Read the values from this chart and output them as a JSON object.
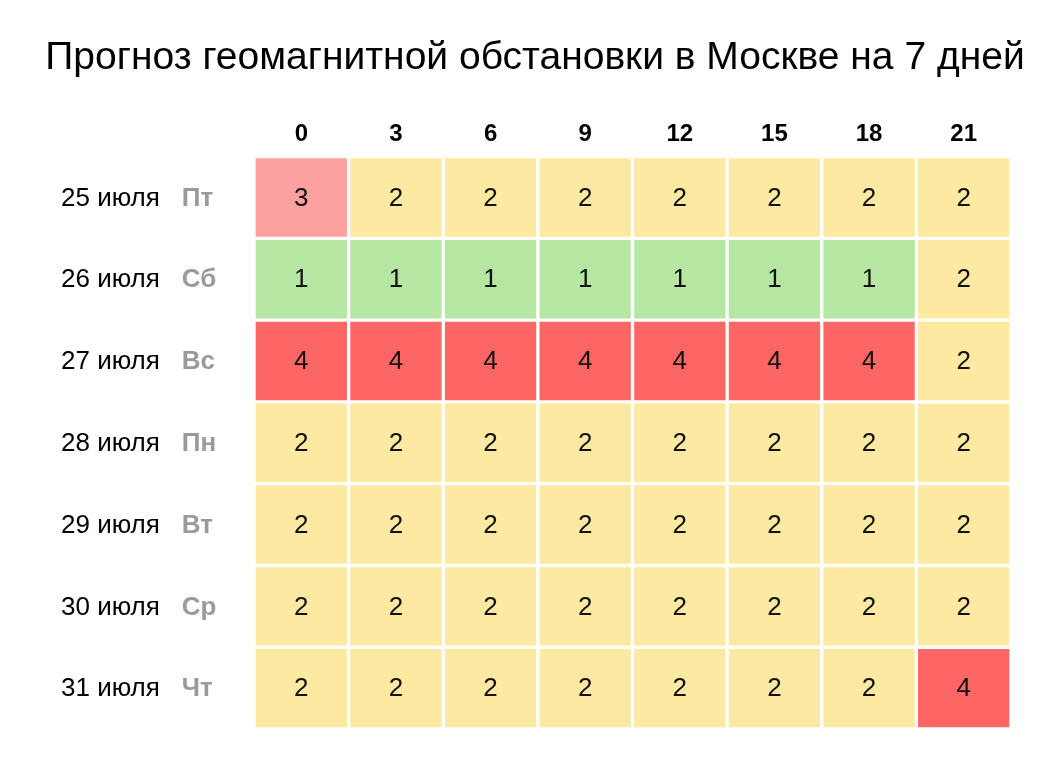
{
  "chart_data": {
    "type": "heatmap",
    "title": "Прогноз геомагнитной обстановки в Москве на 7 дней",
    "categories": [
      "0",
      "3",
      "6",
      "9",
      "12",
      "15",
      "18",
      "21"
    ],
    "y_categories": [
      "25 июля",
      "26 июля",
      "27 июля",
      "28 июля",
      "29 июля",
      "30 июля",
      "31 июля"
    ],
    "y2_categories": [
      "Пт",
      "Сб",
      "Вс",
      "Пн",
      "Вт",
      "Ср",
      "Чт"
    ],
    "cells": [
      [
        3,
        2,
        2,
        2,
        2,
        2,
        2,
        2
      ],
      [
        1,
        1,
        1,
        1,
        1,
        1,
        1,
        2
      ],
      [
        4,
        4,
        4,
        4,
        4,
        4,
        4,
        2
      ],
      [
        2,
        2,
        2,
        2,
        2,
        2,
        2,
        2
      ],
      [
        2,
        2,
        2,
        2,
        2,
        2,
        2,
        2
      ],
      [
        2,
        2,
        2,
        2,
        2,
        2,
        2,
        2
      ],
      [
        2,
        2,
        2,
        2,
        2,
        2,
        2,
        4
      ]
    ],
    "colors": [
      [
        "#fda0a0",
        "#fde9a2",
        "#fde9a2",
        "#fde9a2",
        "#fde9a2",
        "#fde9a2",
        "#fde9a2",
        "#fde9a2"
      ],
      [
        "#b5e6a2",
        "#b5e6a2",
        "#b5e6a2",
        "#b5e6a2",
        "#b5e6a2",
        "#b5e6a2",
        "#b5e6a2",
        "#fde9a2"
      ],
      [
        "#fe6665",
        "#fe6665",
        "#fe6665",
        "#fe6665",
        "#fe6665",
        "#fe6665",
        "#fe6665",
        "#fde9a2"
      ],
      [
        "#fde9a2",
        "#fde9a2",
        "#fde9a2",
        "#fde9a2",
        "#fde9a2",
        "#fde9a2",
        "#fde9a2",
        "#fde9a2"
      ],
      [
        "#fde9a2",
        "#fde9a2",
        "#fde9a2",
        "#fde9a2",
        "#fde9a2",
        "#fde9a2",
        "#fde9a2",
        "#fde9a2"
      ],
      [
        "#fde9a2",
        "#fde9a2",
        "#fde9a2",
        "#fde9a2",
        "#fde9a2",
        "#fde9a2",
        "#fde9a2",
        "#fde9a2"
      ],
      [
        "#fde9a2",
        "#fde9a2",
        "#fde9a2",
        "#fde9a2",
        "#fde9a2",
        "#fde9a2",
        "#fde9a2",
        "#fe6665"
      ]
    ],
    "data_labels": true
  }
}
